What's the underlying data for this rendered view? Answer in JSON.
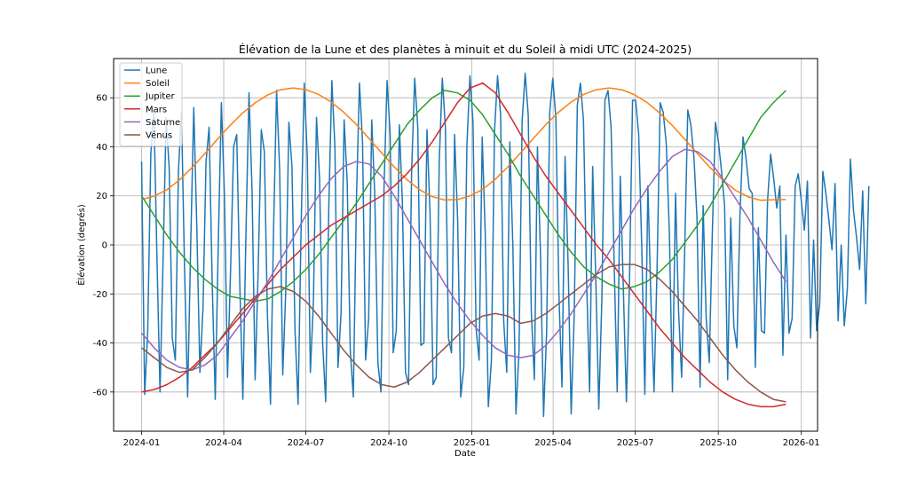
{
  "chart_data": {
    "type": "line",
    "title": "Élévation de la Lune et des planètes à minuit et du Soleil à midi UTC (2024-2025)",
    "xlabel": "Date",
    "ylabel": "Élévation (degrés)",
    "xlim": [
      "2023-12-01",
      "2026-01-19"
    ],
    "ylim": [
      -76,
      76
    ],
    "x_ticks": [
      "2024-01",
      "2024-04",
      "2024-07",
      "2024-10",
      "2025-01",
      "2025-04",
      "2025-07",
      "2025-10",
      "2026-01"
    ],
    "y_ticks": [
      -60,
      -40,
      -20,
      0,
      20,
      40,
      60
    ],
    "grid": true,
    "legend_position": "upper left",
    "series": [
      {
        "name": "Lune",
        "color": "#1f77b4",
        "x_start": "2024-01-01",
        "x_step_days": 3.4,
        "values": [
          34,
          -61,
          -35,
          37,
          55,
          -5,
          -60,
          -6,
          52,
          31,
          -38,
          -47,
          30,
          54,
          -10,
          -62,
          0,
          56,
          7,
          -52,
          -26,
          34,
          48,
          -15,
          -63,
          1,
          58,
          20,
          -54,
          -10,
          40,
          45,
          -16,
          -63,
          4,
          62,
          22,
          -55,
          -10,
          47,
          38,
          -28,
          -65,
          6,
          63,
          30,
          -53,
          -18,
          50,
          32,
          -35,
          -65,
          8,
          66,
          36,
          -52,
          -23,
          52,
          27,
          -40,
          -64,
          15,
          67,
          40,
          -50,
          -28,
          51,
          26,
          -43,
          -62,
          18,
          66,
          42,
          -47,
          -30,
          51,
          20,
          -48,
          -60,
          23,
          67,
          45,
          -44,
          -35,
          49,
          17,
          -52,
          -57,
          30,
          68,
          48,
          -41,
          -40,
          47,
          13,
          -57,
          -54,
          34,
          68,
          48,
          -38,
          -44,
          45,
          10,
          -62,
          -50,
          40,
          69,
          50,
          -34,
          -47,
          44,
          4,
          -66,
          -47,
          46,
          69,
          53,
          -31,
          -52,
          42,
          -1,
          -69,
          -43,
          50,
          70,
          53,
          -27,
          -55,
          40,
          -4,
          -70,
          -35,
          54,
          68,
          52,
          -20,
          -58,
          36,
          -8,
          -69,
          -28,
          57,
          66,
          51,
          -13,
          -60,
          32,
          -13,
          -67,
          -22,
          59,
          63,
          48,
          -7,
          -60,
          28,
          -18,
          -64,
          -15,
          59,
          59,
          45,
          -1,
          -61,
          24,
          -23,
          -60,
          -9,
          58,
          54,
          41,
          5,
          -60,
          21,
          -27,
          -54,
          -2,
          55,
          49,
          36,
          11,
          -58,
          16,
          -30,
          -48,
          5,
          50,
          42,
          30,
          16,
          -55,
          11,
          -33,
          -42,
          12,
          44,
          35,
          23,
          21,
          -50,
          7,
          -35,
          -36,
          18,
          37,
          27,
          15,
          24,
          -45,
          4,
          -36,
          -30,
          24,
          29,
          18,
          6,
          26,
          -38,
          2,
          -35,
          -24,
          30,
          21,
          10,
          -2,
          25,
          -31,
          0,
          -33,
          -18,
          35,
          14,
          3,
          -10,
          22,
          -24,
          24
        ]
      },
      {
        "name": "Soleil",
        "color": "#ff7f0e",
        "x_start": "2024-01-01",
        "x_step_days": 14,
        "values": [
          18.5,
          19.9,
          22.5,
          26.5,
          31.6,
          37.2,
          43.1,
          48.7,
          53.8,
          58.0,
          61.2,
          63.3,
          64.0,
          63.3,
          61.4,
          58.3,
          54.1,
          49.1,
          43.4,
          37.5,
          31.8,
          26.6,
          22.5,
          19.7,
          18.3,
          18.5,
          20.0,
          22.7,
          26.8,
          31.9,
          37.6,
          43.4,
          49.1,
          54.1,
          58.3,
          61.4,
          63.3,
          64.0,
          63.3,
          61.3,
          58.1,
          53.8,
          48.7,
          43.0,
          37.2,
          31.5,
          26.4,
          22.3,
          19.6,
          18.2,
          18.4,
          18.5
        ]
      },
      {
        "name": "Jupiter",
        "color": "#2ca02c",
        "x_start": "2024-01-01",
        "x_step_days": 14,
        "values": [
          20,
          12,
          4,
          -3,
          -9,
          -14,
          -18,
          -21,
          -22,
          -23,
          -22,
          -19,
          -15,
          -10,
          -4,
          3,
          10,
          17,
          25,
          33,
          41,
          49,
          55,
          60,
          63,
          62,
          59,
          53,
          45,
          37,
          28,
          20,
          12,
          4,
          -3,
          -9,
          -13,
          -16,
          -18,
          -17,
          -15,
          -11,
          -6,
          1,
          8,
          16,
          25,
          34,
          43,
          52,
          58,
          63
        ]
      },
      {
        "name": "Mars",
        "color": "#d62728",
        "x_start": "2024-01-01",
        "x_step_days": 14,
        "values": [
          -60,
          -59,
          -57,
          -54,
          -50,
          -45,
          -40,
          -34,
          -28,
          -22,
          -16,
          -10,
          -5,
          0,
          4,
          8,
          11,
          14,
          17,
          20,
          24,
          29,
          35,
          42,
          50,
          58,
          64,
          66,
          62,
          54,
          45,
          36,
          28,
          21,
          14,
          7,
          0,
          -6,
          -13,
          -20,
          -27,
          -34,
          -40,
          -46,
          -51,
          -56,
          -60,
          -63,
          -65,
          -66,
          -66,
          -65
        ]
      },
      {
        "name": "Saturne",
        "color": "#9467bd",
        "x_start": "2024-01-01",
        "x_step_days": 14,
        "values": [
          -36,
          -42,
          -47,
          -50,
          -51,
          -49,
          -45,
          -38,
          -31,
          -23,
          -15,
          -6,
          3,
          12,
          20,
          27,
          32,
          34,
          33,
          28,
          20,
          11,
          2,
          -7,
          -16,
          -24,
          -31,
          -37,
          -42,
          -45,
          -46,
          -45,
          -41,
          -35,
          -28,
          -20,
          -12,
          -3,
          6,
          15,
          23,
          30,
          36,
          39,
          38,
          34,
          27,
          19,
          11,
          2,
          -7,
          -15
        ]
      },
      {
        "name": "Vénus",
        "color": "#8c564b",
        "x_start": "2024-01-01",
        "x_step_days": 14,
        "values": [
          -42,
          -46,
          -50,
          -52,
          -51,
          -46,
          -40,
          -33,
          -26,
          -21,
          -18,
          -17,
          -19,
          -23,
          -29,
          -36,
          -43,
          -49,
          -54,
          -57,
          -58,
          -56,
          -52,
          -47,
          -42,
          -37,
          -32,
          -29,
          -28,
          -29,
          -32,
          -31,
          -28,
          -24,
          -20,
          -16,
          -12,
          -9,
          -8,
          -8,
          -10,
          -14,
          -19,
          -25,
          -31,
          -38,
          -45,
          -51,
          -56,
          -60,
          -63,
          -64
        ]
      }
    ]
  }
}
